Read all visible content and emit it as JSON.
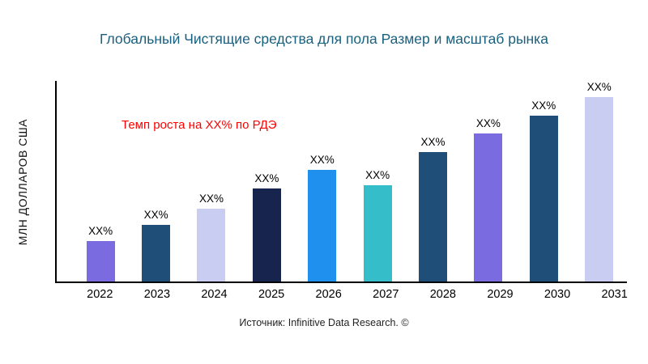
{
  "chart_data": {
    "type": "bar",
    "title": "Глобальный Чистящие средства для пола Размер и масштаб рынка",
    "title_color": "#1a617f",
    "annotation": {
      "text": "Темп роста на XX% по РДЭ",
      "color": "#ff0000"
    },
    "ylabel": "МЛН ДОЛЛАРОВ США",
    "xlabel": "",
    "categories": [
      "2022",
      "2023",
      "2024",
      "2025",
      "2026",
      "2027",
      "2028",
      "2029",
      "2030",
      "2031"
    ],
    "values": [
      22,
      31,
      40,
      51,
      61,
      53,
      71,
      81,
      91,
      101
    ],
    "bar_labels": [
      "XX%",
      "XX%",
      "XX%",
      "XX%",
      "XX%",
      "XX%",
      "XX%",
      "XX%",
      "XX%",
      "XX%"
    ],
    "bar_colors": [
      "#7a6ce0",
      "#1f4e79",
      "#c9cdf2",
      "#16244e",
      "#2090ee",
      "#35bdc9",
      "#1f4e79",
      "#7a6ce0",
      "#1f4e79",
      "#c9cdf2"
    ],
    "ylim": [
      0,
      110
    ],
    "grid": false,
    "legend": false,
    "source": "Источник: Infinitive Data Research. ©"
  }
}
